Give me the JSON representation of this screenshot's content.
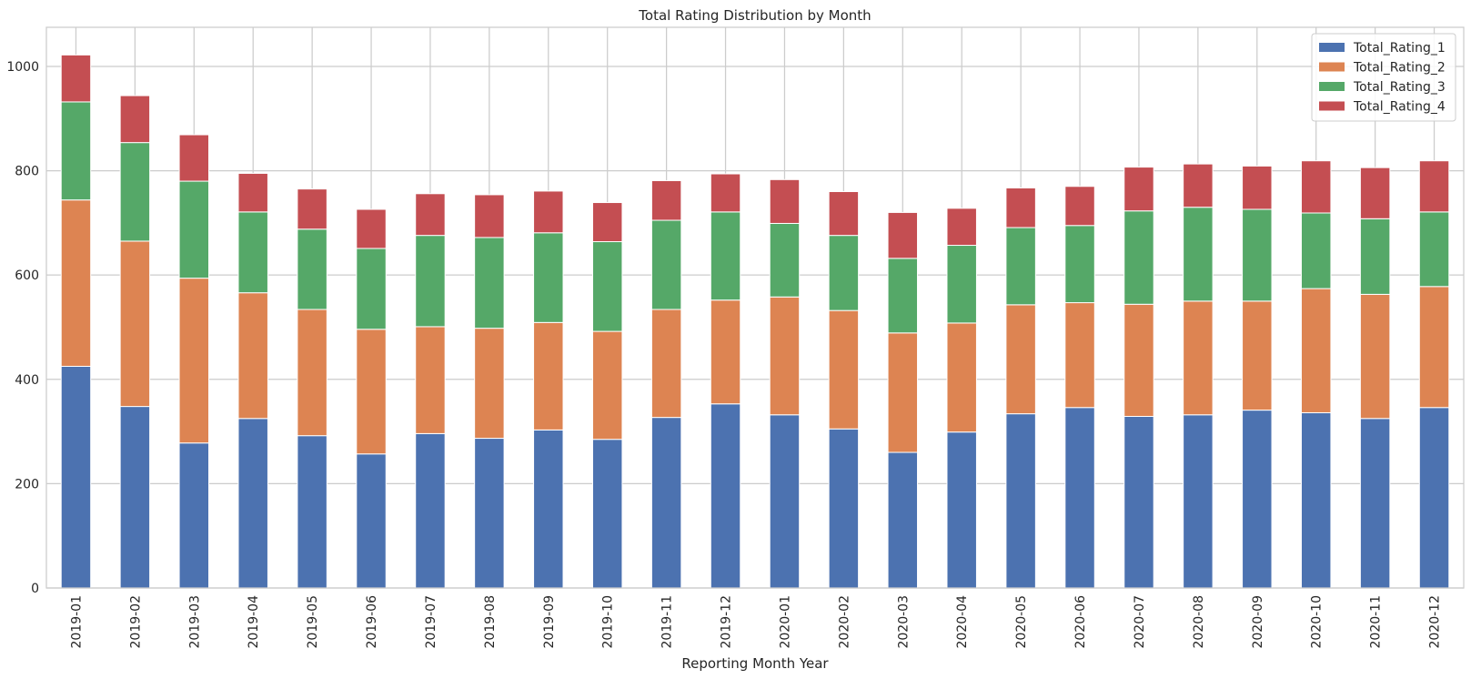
{
  "chart_data": {
    "type": "bar",
    "stacked": true,
    "title": "Total Rating Distribution by Month",
    "xlabel": "Reporting Month Year",
    "ylabel": "",
    "ylim": [
      0,
      1075
    ],
    "yticks": [
      0,
      200,
      400,
      600,
      800,
      1000
    ],
    "grid": true,
    "legend_position": "top-right",
    "categories": [
      "2019-01",
      "2019-02",
      "2019-03",
      "2019-04",
      "2019-05",
      "2019-06",
      "2019-07",
      "2019-08",
      "2019-09",
      "2019-10",
      "2019-11",
      "2019-12",
      "2020-01",
      "2020-02",
      "2020-03",
      "2020-04",
      "2020-05",
      "2020-06",
      "2020-07",
      "2020-08",
      "2020-09",
      "2020-10",
      "2020-11",
      "2020-12"
    ],
    "series": [
      {
        "name": "Total_Rating_1",
        "color": "#4c72b0",
        "values": [
          425,
          348,
          278,
          325,
          292,
          257,
          296,
          287,
          303,
          285,
          327,
          353,
          332,
          305,
          260,
          299,
          334,
          346,
          329,
          332,
          341,
          336,
          325,
          346
        ]
      },
      {
        "name": "Total_Rating_2",
        "color": "#dd8452",
        "values": [
          319,
          317,
          316,
          241,
          242,
          239,
          205,
          211,
          206,
          207,
          207,
          199,
          226,
          227,
          229,
          209,
          209,
          201,
          215,
          218,
          209,
          238,
          238,
          232
        ]
      },
      {
        "name": "Total_Rating_3",
        "color": "#55a868",
        "values": [
          188,
          189,
          186,
          155,
          154,
          155,
          175,
          174,
          172,
          172,
          171,
          169,
          141,
          144,
          143,
          149,
          148,
          148,
          179,
          180,
          176,
          145,
          145,
          143
        ]
      },
      {
        "name": "Total_Rating_4",
        "color": "#c44e52",
        "values": [
          90,
          90,
          89,
          74,
          77,
          75,
          80,
          82,
          80,
          75,
          76,
          73,
          84,
          84,
          88,
          71,
          76,
          75,
          84,
          83,
          83,
          100,
          98,
          98
        ]
      }
    ]
  }
}
